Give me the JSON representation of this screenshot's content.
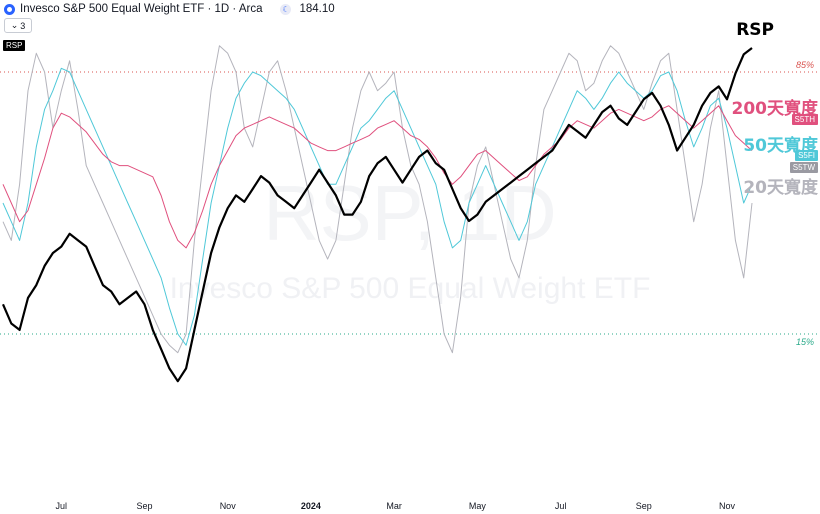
{
  "header": {
    "title": "Invesco S&P 500 Equal Weight ETF · 1D · Arca",
    "price": "184.10",
    "collapse_count": "3",
    "symbol_tag": "RSP"
  },
  "labels": {
    "rsp": "RSP",
    "b200": "200天寬度",
    "b50": "50天寬度",
    "b20": "20天寬度",
    "tag200": "S5TH",
    "tag50": "S5FI",
    "tag20": "S5TW",
    "level_high": "85%",
    "level_low": "15%"
  },
  "watermark": {
    "big": "RSP, 1D",
    "small": "Invesco S&P 500 Equal Weight ETF"
  },
  "colors": {
    "rsp": "#000000",
    "b200": "#e0507e",
    "b50": "#4fc8d8",
    "b20": "#b4b4bc",
    "level_high": "#d9534f",
    "level_low": "#2aaa8a"
  },
  "chart_data": {
    "type": "line",
    "x_ticks": [
      "Jul",
      "Sep",
      "Nov",
      "2024",
      "Mar",
      "May",
      "Jul",
      "Sep",
      "Nov"
    ],
    "x_tick_index": [
      7,
      17,
      27,
      37,
      47,
      57,
      67,
      77,
      87
    ],
    "levels": {
      "high": 85,
      "low": 15
    },
    "series": [
      {
        "name": "RSP",
        "values": [
          144,
          141,
          140,
          145,
          147,
          150,
          152,
          153,
          155,
          154,
          153,
          150,
          147,
          146,
          144,
          145,
          146,
          144,
          140,
          137,
          134,
          132,
          134,
          140,
          146,
          152,
          156,
          159,
          161,
          160,
          162,
          164,
          163,
          161,
          160,
          159,
          161,
          163,
          165,
          163,
          161,
          158,
          158,
          160,
          164,
          166,
          167,
          165,
          163,
          165,
          167,
          168,
          166,
          165,
          162,
          159,
          157,
          158,
          160,
          161,
          162,
          163,
          164,
          165,
          166,
          167,
          168,
          170,
          172,
          171,
          170,
          172,
          174,
          175,
          173,
          172,
          174,
          176,
          177,
          175,
          172,
          168,
          170,
          172,
          175,
          177,
          178,
          176,
          180,
          183,
          184
        ]
      },
      {
        "name": "200天寬度",
        "values": [
          55,
          50,
          45,
          48,
          55,
          62,
          70,
          74,
          73,
          71,
          69,
          66,
          63,
          61,
          60,
          60,
          59,
          58,
          57,
          52,
          45,
          40,
          38,
          42,
          48,
          55,
          60,
          64,
          68,
          70,
          71,
          72,
          73,
          72,
          71,
          70,
          68,
          66,
          65,
          64,
          64,
          65,
          66,
          67,
          68,
          70,
          71,
          72,
          70,
          68,
          67,
          65,
          62,
          58,
          55,
          57,
          60,
          63,
          64,
          62,
          60,
          58,
          56,
          57,
          60,
          63,
          65,
          67,
          70,
          72,
          71,
          70,
          72,
          74,
          75,
          74,
          73,
          72,
          73,
          75,
          76,
          74,
          72,
          70,
          72,
          74,
          76,
          72,
          68,
          66,
          64
        ]
      },
      {
        "name": "50天寬度",
        "values": [
          50,
          45,
          40,
          50,
          65,
          75,
          80,
          86,
          85,
          80,
          75,
          70,
          65,
          60,
          55,
          50,
          45,
          40,
          35,
          30,
          22,
          15,
          12,
          20,
          35,
          50,
          60,
          70,
          78,
          82,
          85,
          84,
          82,
          80,
          78,
          75,
          70,
          65,
          60,
          55,
          55,
          60,
          65,
          70,
          72,
          75,
          78,
          80,
          75,
          70,
          65,
          60,
          55,
          45,
          38,
          40,
          50,
          55,
          60,
          55,
          50,
          45,
          40,
          45,
          55,
          60,
          65,
          70,
          75,
          80,
          78,
          75,
          78,
          82,
          85,
          82,
          80,
          78,
          80,
          84,
          85,
          80,
          72,
          65,
          70,
          76,
          78,
          70,
          60,
          50,
          55
        ]
      },
      {
        "name": "20天寬度",
        "values": [
          45,
          40,
          55,
          80,
          90,
          85,
          70,
          80,
          88,
          75,
          60,
          55,
          50,
          45,
          40,
          35,
          30,
          25,
          20,
          15,
          12,
          10,
          15,
          40,
          60,
          80,
          92,
          90,
          85,
          70,
          65,
          75,
          85,
          88,
          80,
          70,
          60,
          50,
          40,
          35,
          40,
          55,
          70,
          80,
          85,
          80,
          82,
          85,
          70,
          60,
          55,
          45,
          30,
          15,
          10,
          25,
          50,
          60,
          65,
          55,
          45,
          35,
          30,
          40,
          60,
          75,
          80,
          85,
          90,
          88,
          80,
          82,
          88,
          92,
          90,
          85,
          80,
          75,
          82,
          88,
          90,
          75,
          60,
          45,
          55,
          70,
          80,
          60,
          40,
          30,
          50
        ]
      }
    ]
  }
}
